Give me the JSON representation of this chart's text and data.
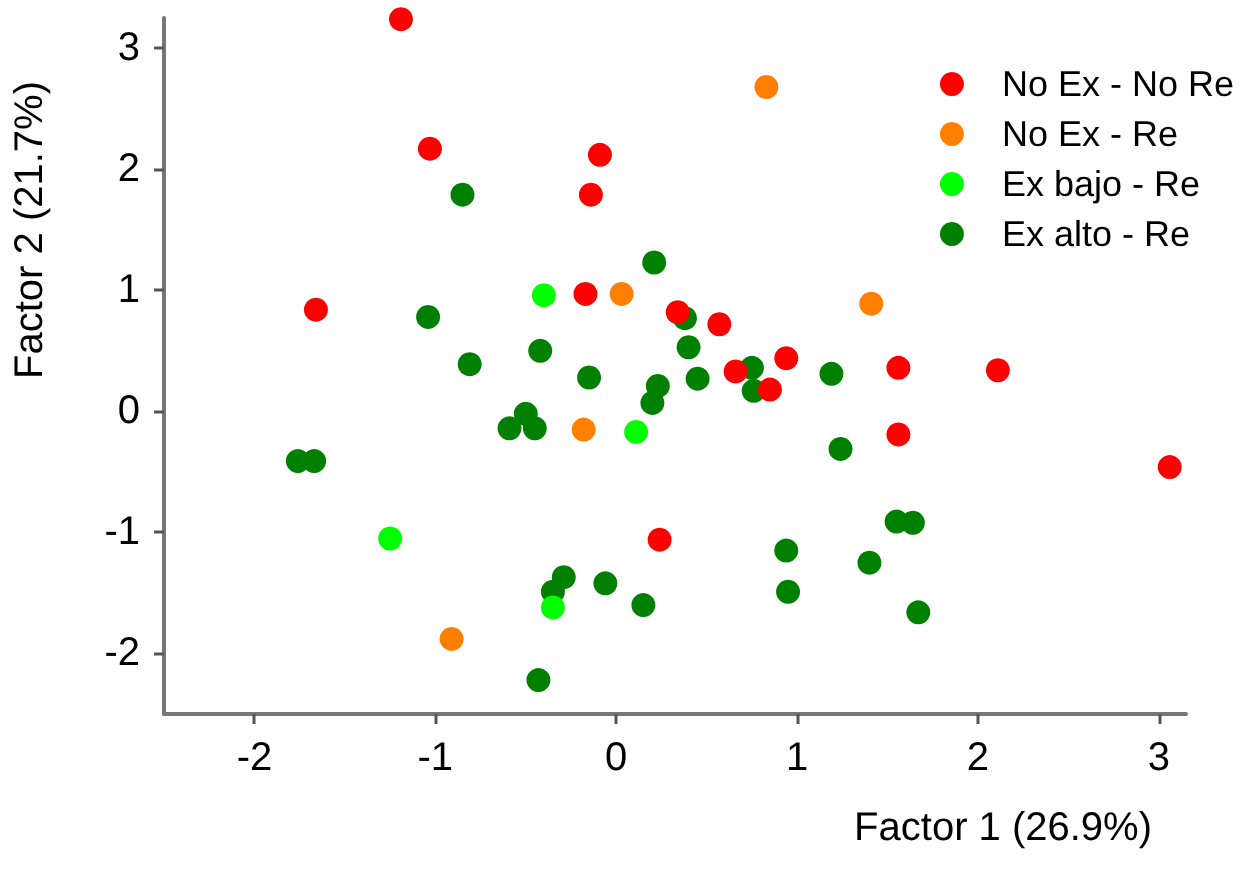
{
  "chart_data": {
    "type": "scatter",
    "xlabel": "Factor 1 (26.9%)",
    "ylabel": "Factor 2 (21.7%)",
    "xlim": [
      -2.5,
      3.15
    ],
    "ylim": [
      -2.5,
      3.25
    ],
    "xticks": [
      -2,
      -1,
      0,
      1,
      2,
      3
    ],
    "yticks": [
      -2,
      -1,
      0,
      1,
      2,
      3
    ],
    "grid": false,
    "legend": "top right",
    "marker": "circle",
    "series": [
      {
        "name": "No Ex - No Re",
        "color": "#ff0000",
        "x": [
          -1.19,
          -1.03,
          -0.09,
          -0.14,
          -1.66,
          -0.17,
          0.34,
          0.57,
          0.66,
          0.85,
          0.94,
          1.56,
          2.11,
          1.56,
          3.06,
          0.24
        ],
        "values": [
          3.24,
          2.17,
          2.12,
          1.79,
          0.84,
          0.97,
          0.82,
          0.72,
          0.33,
          0.18,
          0.44,
          0.36,
          0.34,
          -0.19,
          -0.46,
          -1.06
        ]
      },
      {
        "name": "No Ex - Re",
        "color": "#ff8000",
        "x": [
          0.83,
          0.03,
          1.41,
          -0.18,
          -0.91
        ],
        "values": [
          2.68,
          0.97,
          0.89,
          -0.15,
          -1.88
        ]
      },
      {
        "name": "Ex bajo - Re",
        "color": "#00ff00",
        "x": [
          -0.4,
          0.11,
          -1.25,
          -0.35
        ],
        "values": [
          0.96,
          -0.17,
          -1.05,
          -1.62
        ]
      },
      {
        "name": "Ex alto - Re",
        "color": "#008000",
        "x": [
          -0.85,
          0.21,
          -1.04,
          -0.81,
          -0.42,
          -0.15,
          0.23,
          0.2,
          -0.5,
          0.38,
          0.4,
          0.45,
          0.75,
          0.76,
          1.19,
          -0.59,
          -0.45,
          -1.76,
          -1.67,
          -0.29,
          -0.35,
          -0.06,
          0.15,
          -0.43,
          1.24,
          1.55,
          1.64,
          0.94,
          1.4,
          0.95,
          1.67
        ],
        "values": [
          1.79,
          1.23,
          0.78,
          0.39,
          0.5,
          0.28,
          0.21,
          0.07,
          -0.02,
          0.77,
          0.53,
          0.27,
          0.36,
          0.17,
          0.31,
          -0.14,
          -0.14,
          -0.41,
          -0.41,
          -1.37,
          -1.49,
          -1.42,
          -1.6,
          -2.22,
          -0.31,
          -0.91,
          -0.92,
          -1.15,
          -1.25,
          -1.49,
          -1.66
        ]
      }
    ]
  }
}
